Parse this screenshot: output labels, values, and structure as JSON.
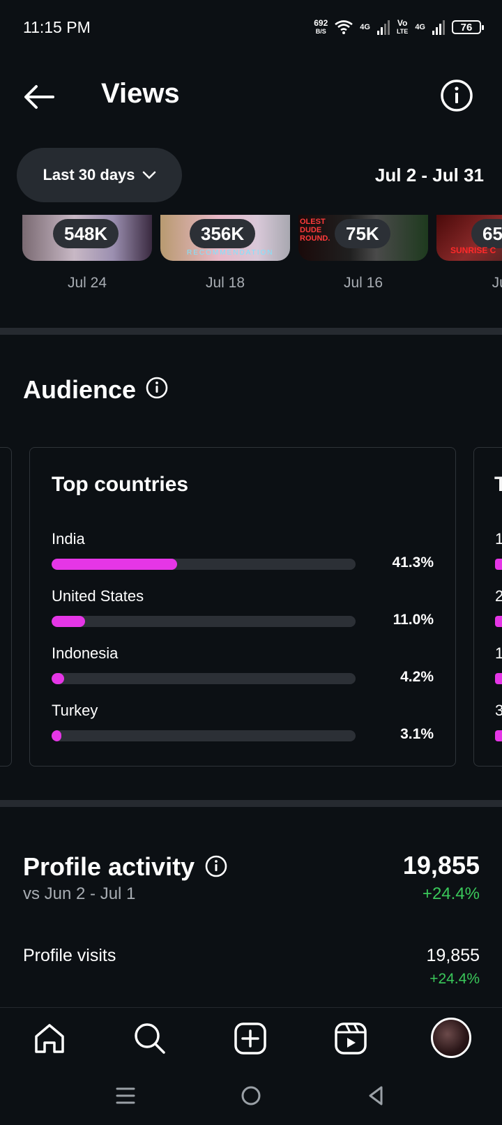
{
  "status_bar": {
    "time": "11:15 PM",
    "net_speed": "692",
    "net_unit": "B/S",
    "sig1": "4G",
    "volte_top": "Vo",
    "volte_bottom": "LTE",
    "sig2": "4G",
    "battery": "76"
  },
  "header": {
    "title": "Views",
    "range_label": "Last 30 days",
    "date_range": "Jul 2 - Jul 31"
  },
  "top_content": [
    {
      "views": "548K",
      "date": "Jul 24"
    },
    {
      "views": "356K",
      "date": "Jul 18",
      "overlay": "RECOMMENDATION"
    },
    {
      "views": "75K",
      "date": "Jul 16",
      "overlay": "OLEST DUDE ROUND."
    },
    {
      "views": "65",
      "date": "Jul",
      "overlay": "SUNRISE C"
    }
  ],
  "audience": {
    "title": "Audience",
    "card_title": "Top countries",
    "countries": [
      {
        "name": "India",
        "percent": "41.3%",
        "value": 41.3
      },
      {
        "name": "United States",
        "percent": "11.0%",
        "value": 11.0
      },
      {
        "name": "Indonesia",
        "percent": "4.2%",
        "value": 4.2
      },
      {
        "name": "Turkey",
        "percent": "3.1%",
        "value": 3.1
      }
    ],
    "next_card_peek": {
      "title": "T",
      "rows": [
        "1",
        "2",
        "1",
        "3"
      ]
    }
  },
  "profile_activity": {
    "title": "Profile activity",
    "compare": "vs Jun 2 - Jul 1",
    "total": "19,855",
    "change": "+24.4%",
    "visits_label": "Profile visits",
    "visits_value": "19,855",
    "visits_change": "+24.4%"
  },
  "colors": {
    "background": "#0c1014",
    "bar_accent": "#e536e6",
    "positive": "#3ac85a"
  }
}
